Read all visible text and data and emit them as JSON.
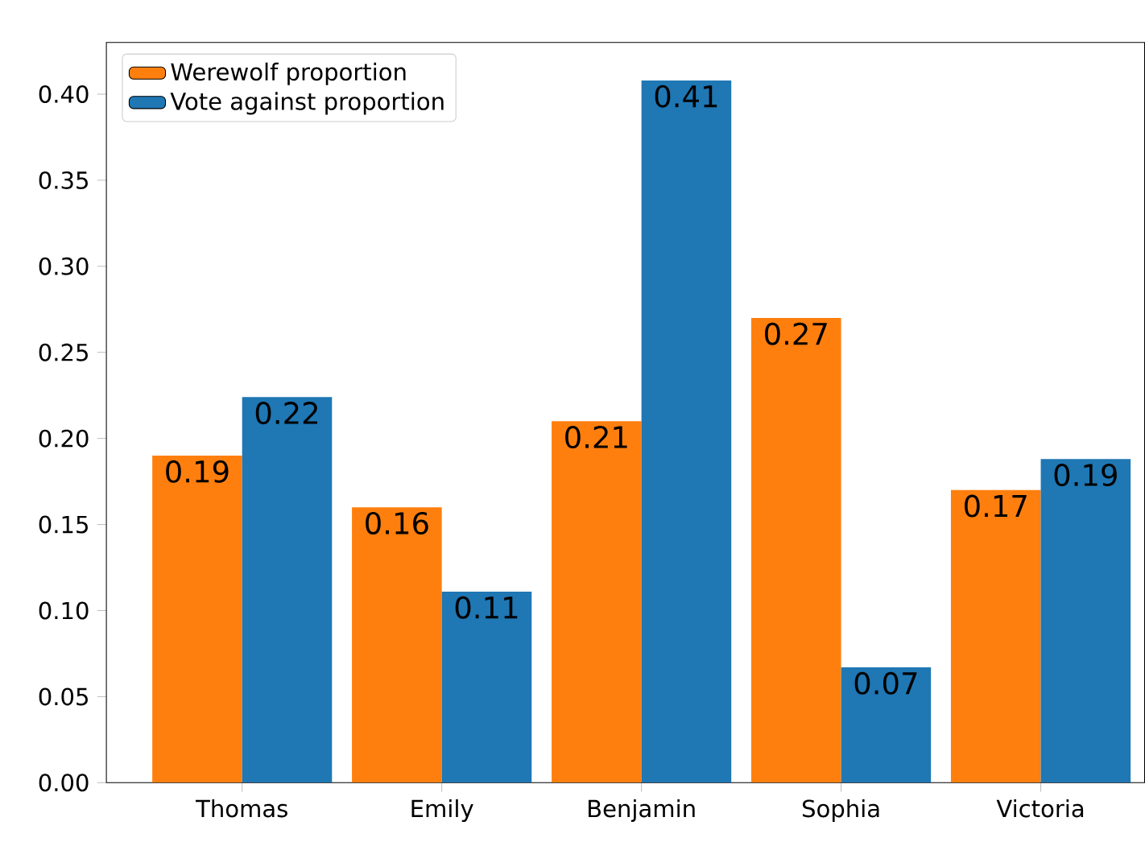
{
  "chart_data": {
    "type": "bar",
    "categories": [
      "Thomas",
      "Emily",
      "Benjamin",
      "Sophia",
      "Victoria"
    ],
    "series": [
      {
        "name": "Werewolf proportion",
        "color": "#ff7f0e",
        "values": [
          0.19,
          0.16,
          0.21,
          0.27,
          0.17
        ],
        "value_labels": [
          "0.19",
          "0.16",
          "0.21",
          "0.27",
          "0.17"
        ]
      },
      {
        "name": "Vote against proportion",
        "color": "#1f77b4",
        "values": [
          0.224,
          0.111,
          0.408,
          0.067,
          0.188
        ],
        "value_labels": [
          "0.22",
          "0.11",
          "0.41",
          "0.07",
          "0.19"
        ]
      }
    ],
    "ylim": [
      0,
      0.43
    ],
    "yticks": [
      {
        "value": 0,
        "label": "0.00"
      },
      {
        "value": 0.05,
        "label": "0.05"
      },
      {
        "value": 0.1,
        "label": "0.10"
      },
      {
        "value": 0.15,
        "label": "0.15"
      },
      {
        "value": 0.2,
        "label": "0.20"
      },
      {
        "value": 0.25,
        "label": "0.25"
      },
      {
        "value": 0.3,
        "label": "0.30"
      },
      {
        "value": 0.35,
        "label": "0.35"
      },
      {
        "value": 0.4,
        "label": "0.40"
      }
    ],
    "legend": "top left",
    "grid": false
  }
}
